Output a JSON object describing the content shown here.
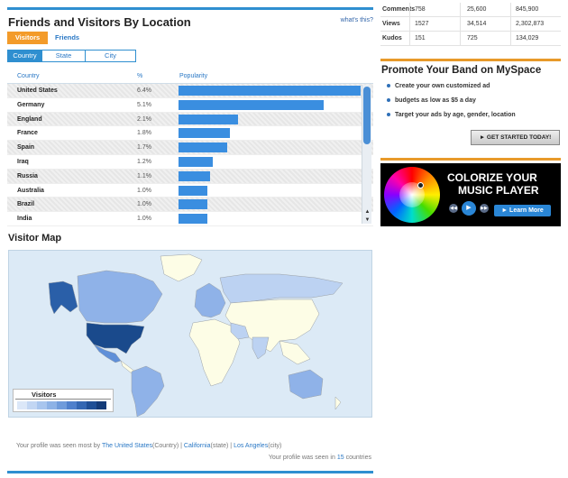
{
  "header": {
    "title": "Friends and Visitors By Location",
    "help_link": "what's this?"
  },
  "view_tabs": [
    {
      "label": "Visitors",
      "active": true
    },
    {
      "label": "Friends",
      "active": false
    }
  ],
  "scope_tabs": [
    {
      "label": "Country",
      "active": true
    },
    {
      "label": "State",
      "active": false
    },
    {
      "label": "City",
      "active": false
    }
  ],
  "table": {
    "headers": {
      "country": "Country",
      "percent": "%",
      "popularity": "Popularity"
    },
    "rows": [
      {
        "country": "United States",
        "percent": "6.4%",
        "value": 6.4
      },
      {
        "country": "Germany",
        "percent": "5.1%",
        "value": 5.1
      },
      {
        "country": "England",
        "percent": "2.1%",
        "value": 2.1
      },
      {
        "country": "France",
        "percent": "1.8%",
        "value": 1.8
      },
      {
        "country": "Spain",
        "percent": "1.7%",
        "value": 1.7
      },
      {
        "country": "Iraq",
        "percent": "1.2%",
        "value": 1.2
      },
      {
        "country": "Russia",
        "percent": "1.1%",
        "value": 1.1
      },
      {
        "country": "Australia",
        "percent": "1.0%",
        "value": 1.0
      },
      {
        "country": "Brazil",
        "percent": "1.0%",
        "value": 1.0
      },
      {
        "country": "India",
        "percent": "1.0%",
        "value": 1.0
      }
    ]
  },
  "map": {
    "title": "Visitor Map",
    "legend_label": "Visitors",
    "legend_colors": [
      "#dbe7f8",
      "#c2d6f3",
      "#a8c5ee",
      "#8db2e6",
      "#6f9bdb",
      "#4f80cc",
      "#3467b3",
      "#1f4f96",
      "#143b78"
    ],
    "region_colors": {
      "land": "#fdfde6",
      "border": "#9aa0a6",
      "level1": "#bcd2f2",
      "level2": "#8fb2e8",
      "level3": "#5f8fd8",
      "level4": "#2a5fa8",
      "level5": "#1a4a8c"
    }
  },
  "captions": {
    "seen_most_prefix": "Your profile was seen most by",
    "country": "The United States",
    "country_suffix": "(Country)",
    "state": "California",
    "state_suffix": "(state)",
    "city": "Los Angeles",
    "city_suffix": "(city)",
    "sep": "|",
    "seen_in_prefix": "Your profile was seen in",
    "count": "15",
    "seen_in_suffix": "countries"
  },
  "stats": [
    {
      "label": "Comments",
      "v1": "758",
      "v2": "25,600",
      "v3": "845,900"
    },
    {
      "label": "Views",
      "v1": "1527",
      "v2": "34,514",
      "v3": "2,302,873"
    },
    {
      "label": "Kudos",
      "v1": "151",
      "v2": "725",
      "v3": "134,029"
    }
  ],
  "promo": {
    "title": "Promote Your Band on MySpace",
    "bullets": [
      "Create your own customized ad",
      "budgets as low as $5 a day",
      "Target your ads by age, gender, location"
    ],
    "cta": "► GET STARTED TODAY!"
  },
  "ad": {
    "line1": "COLORIZE YOUR",
    "line2": "MUSIC PLAYER",
    "button": "► Learn More"
  }
}
